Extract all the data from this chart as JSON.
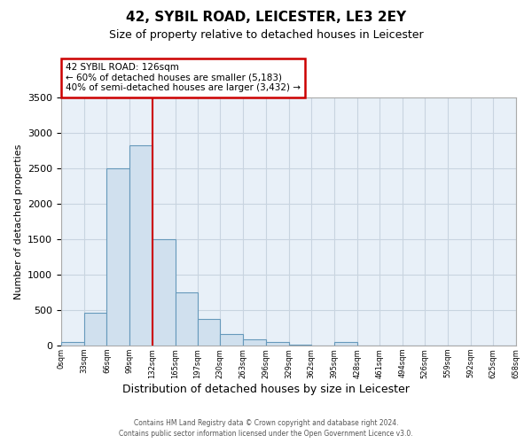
{
  "title": "42, SYBIL ROAD, LEICESTER, LE3 2EY",
  "subtitle": "Size of property relative to detached houses in Leicester",
  "xlabel": "Distribution of detached houses by size in Leicester",
  "ylabel": "Number of detached properties",
  "bar_color": "#d0e0ee",
  "bar_edge_color": "#6699bb",
  "grid_color": "#c8d4e0",
  "background_color": "#e8f0f8",
  "property_line_color": "#cc0000",
  "annotation_box_edge_color": "#cc0000",
  "property_line_x": 132,
  "annotation_line1": "42 SYBIL ROAD: 126sqm",
  "annotation_line2": "← 60% of detached houses are smaller (5,183)",
  "annotation_line3": "40% of semi-detached houses are larger (3,432) →",
  "bin_edges": [
    0,
    33,
    66,
    99,
    132,
    165,
    197,
    230,
    263,
    296,
    329,
    362,
    395,
    428,
    461,
    494,
    526,
    559,
    592,
    625,
    658
  ],
  "bin_labels": [
    "0sqm",
    "33sqm",
    "66sqm",
    "99sqm",
    "132sqm",
    "165sqm",
    "197sqm",
    "230sqm",
    "263sqm",
    "296sqm",
    "329sqm",
    "362sqm",
    "395sqm",
    "428sqm",
    "461sqm",
    "494sqm",
    "526sqm",
    "559sqm",
    "592sqm",
    "625sqm",
    "658sqm"
  ],
  "counts": [
    50,
    460,
    2500,
    2820,
    1500,
    750,
    380,
    160,
    90,
    50,
    10,
    5,
    55,
    5,
    2,
    1,
    1,
    0,
    0,
    0
  ],
  "ylim_max": 3500,
  "yticks": [
    0,
    500,
    1000,
    1500,
    2000,
    2500,
    3000,
    3500
  ],
  "footnote1": "Contains HM Land Registry data © Crown copyright and database right 2024.",
  "footnote2": "Contains public sector information licensed under the Open Government Licence v3.0."
}
